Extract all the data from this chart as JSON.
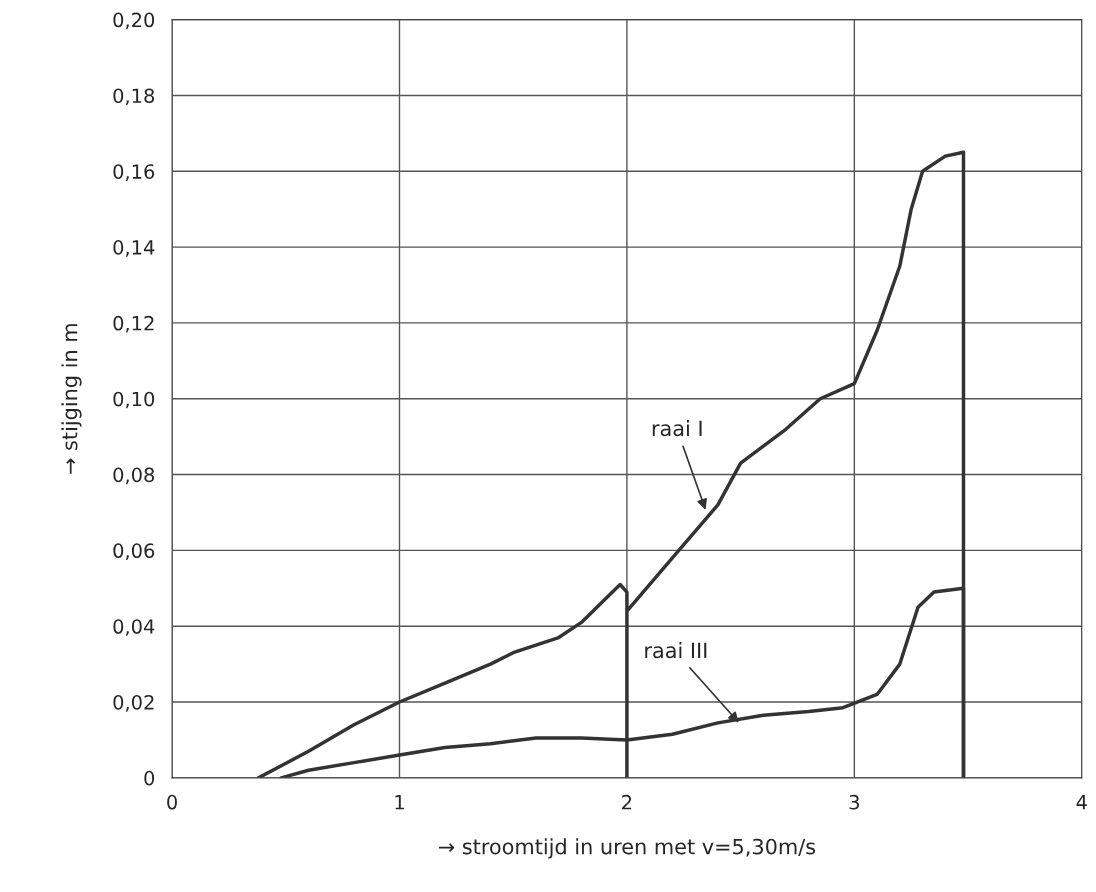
{
  "chart_data": {
    "type": "line",
    "xlabel": "→ stroomtijd in uren met v=5,30m/s",
    "ylabel": "→ stijging in m",
    "series": [
      {
        "color": "#333333",
        "x": [
          0.38,
          0.6,
          0.8,
          1.0,
          1.2,
          1.4,
          1.5,
          1.7,
          1.8,
          1.97,
          2.0,
          2.0,
          2.0,
          2.2,
          2.4,
          2.5,
          2.7,
          2.85,
          3.0,
          3.1,
          3.2,
          3.25,
          3.3,
          3.4,
          3.48,
          3.48
        ],
        "values": [
          0,
          0.007,
          0.014,
          0.02,
          0.025,
          0.03,
          0.033,
          0.037,
          0.041,
          0.051,
          0.049,
          0,
          0.044,
          0.058,
          0.072,
          0.083,
          0.092,
          0.1,
          0.104,
          0.118,
          0.135,
          0.15,
          0.16,
          0.164,
          0.165,
          0
        ]
      },
      {
        "color": "#333333",
        "x": [
          0.48,
          0.6,
          0.8,
          1.0,
          1.2,
          1.4,
          1.6,
          1.8,
          2.0,
          2.2,
          2.4,
          2.6,
          2.8,
          2.95,
          3.1,
          3.2,
          3.28,
          3.35,
          3.48,
          3.48
        ],
        "values": [
          0,
          0.002,
          0.004,
          0.006,
          0.008,
          0.009,
          0.0105,
          0.0105,
          0.01,
          0.0115,
          0.0145,
          0.0165,
          0.0175,
          0.0185,
          0.022,
          0.03,
          0.045,
          0.049,
          0.05,
          0
        ]
      }
    ],
    "annotations": [
      {
        "text": "raai I",
        "x": 2.35,
        "y": 0.07
      },
      {
        "text": "raai III",
        "x": 2.5,
        "y": 0.014
      }
    ],
    "xlim": [
      0,
      4
    ],
    "xticks": [
      0,
      1,
      2,
      3,
      4
    ],
    "ylim": [
      0,
      0.2
    ],
    "yticks": [
      {
        "value": 0,
        "label": "0"
      },
      {
        "value": 0.02,
        "label": "0,02"
      },
      {
        "value": 0.04,
        "label": "0,04"
      },
      {
        "value": 0.06,
        "label": "0,06"
      },
      {
        "value": 0.08,
        "label": "0,08"
      },
      {
        "value": 0.1,
        "label": "0,10"
      },
      {
        "value": 0.12,
        "label": "0,12"
      },
      {
        "value": 0.14,
        "label": "0,14"
      },
      {
        "value": 0.16,
        "label": "0,16"
      },
      {
        "value": 0.18,
        "label": "0,18"
      },
      {
        "value": 0.2,
        "label": "0,20"
      }
    ],
    "grid": true,
    "line_style": "solid",
    "marker": "none"
  }
}
